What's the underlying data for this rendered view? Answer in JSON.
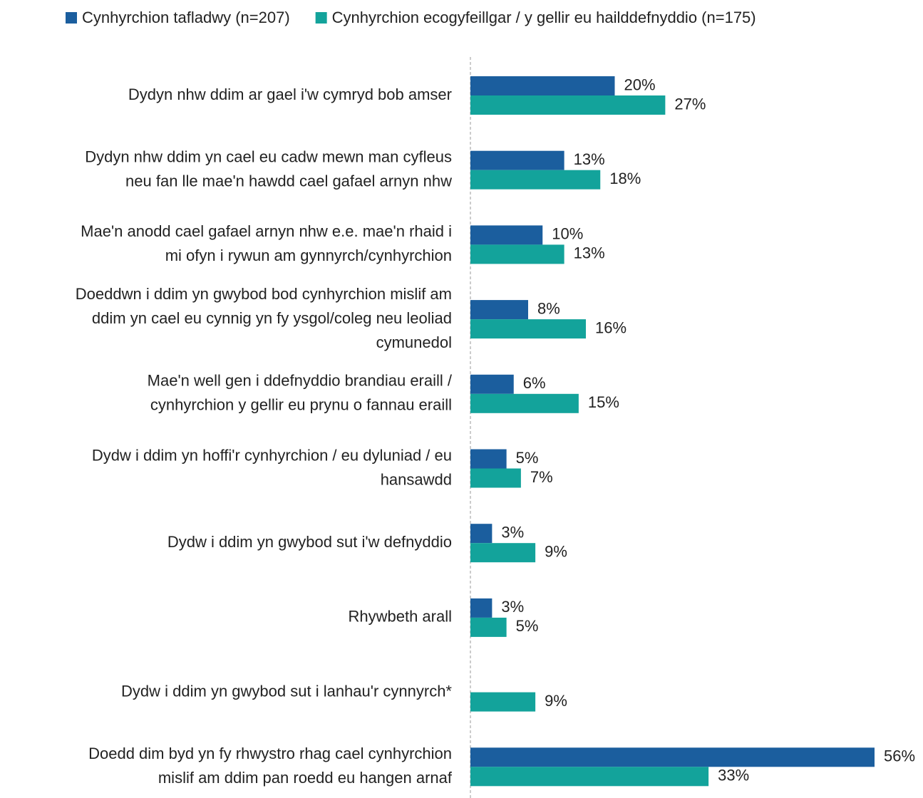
{
  "chart_data": {
    "type": "bar",
    "orientation": "horizontal",
    "categories": [
      [
        "Dydyn nhw ddim ar gael i'w cymryd bob amser"
      ],
      [
        "Dydyn nhw ddim yn cael eu cadw mewn man cyfleus",
        "neu fan lle mae'n hawdd cael gafael arnyn nhw"
      ],
      [
        "Mae'n anodd cael gafael arnyn nhw e.e. mae'n rhaid i",
        "mi ofyn i rywun am gynnyrch/cynhyrchion"
      ],
      [
        "Doeddwn i ddim yn gwybod bod cynhyrchion mislif am",
        "ddim yn cael eu cynnig yn fy ysgol/coleg neu leoliad",
        "cymunedol"
      ],
      [
        "Mae'n well gen i ddefnyddio brandiau eraill /",
        "cynhyrchion y gellir eu prynu o fannau eraill"
      ],
      [
        "Dydw i ddim yn hoffi'r cynhyrchion / eu dyluniad / eu",
        "hansawdd"
      ],
      [
        "Dydw i ddim yn gwybod sut i'w defnyddio"
      ],
      [
        "Rhywbeth arall"
      ],
      [
        "Dydw i ddim yn gwybod sut i lanhau'r cynnyrch*"
      ],
      [
        "Doedd dim byd yn fy rhwystro rhag cael cynhyrchion",
        "mislif am ddim pan roedd eu hangen arnaf"
      ]
    ],
    "series": [
      {
        "name": "Cynhyrchion tafladwy (n=207)",
        "color": "#1b5e9e",
        "values": [
          20,
          13,
          10,
          8,
          6,
          5,
          3,
          3,
          null,
          56
        ],
        "value_labels": [
          "20%",
          "13%",
          "10%",
          "8%",
          "6%",
          "5%",
          "3%",
          "3%",
          null,
          "56%"
        ]
      },
      {
        "name": "Cynhyrchion ecogyfeillgar / y gellir eu hailddefnyddio (n=175)",
        "color": "#13a39b",
        "values": [
          27,
          18,
          13,
          16,
          15,
          7,
          9,
          5,
          9,
          33
        ],
        "value_labels": [
          "27%",
          "18%",
          "13%",
          "16%",
          "15%",
          "7%",
          "9%",
          "5%",
          "9%",
          "33%"
        ]
      }
    ],
    "legend": "top"
  }
}
